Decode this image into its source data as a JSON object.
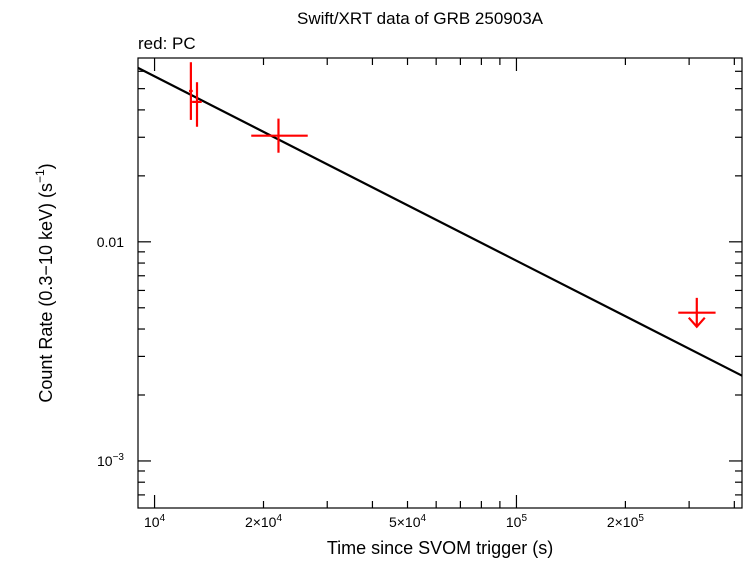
{
  "chart_data": {
    "type": "scatter",
    "title": "Swift/XRT data of GRB 250903A",
    "subtitle": "red: PC",
    "xlabel": "Time since SVOM trigger (s)",
    "ylabel": "Count Rate (0.3−10 keV) (s",
    "ylabel_sup": "−1",
    "ylabel_close": ")",
    "x_scale": "log",
    "y_scale": "log",
    "xlim": [
      9000,
      420000
    ],
    "ylim": [
      0.00061,
      0.069
    ],
    "x_ticks": [
      {
        "value": 10000,
        "label": "10",
        "sup": "4"
      },
      {
        "value": 20000,
        "label": "2×10",
        "sup": "4"
      },
      {
        "value": 50000,
        "label": "5×10",
        "sup": "4"
      },
      {
        "value": 100000,
        "label": "10",
        "sup": "5"
      },
      {
        "value": 200000,
        "label": "2×10",
        "sup": "5"
      }
    ],
    "y_ticks": [
      {
        "value": 0.01,
        "label": "0.01",
        "sup": ""
      },
      {
        "value": 0.001,
        "label": "10",
        "sup": "−3"
      }
    ],
    "grid": false,
    "series": [
      {
        "name": "PC",
        "color": "#ff0000",
        "points": [
          {
            "x": 12600,
            "y": 0.0488,
            "x_lo": 12450,
            "x_hi": 12750,
            "y_lo": 0.036,
            "y_hi": 0.066
          },
          {
            "x": 13100,
            "y": 0.0435,
            "x_lo": 12700,
            "x_hi": 13500,
            "y_lo": 0.0335,
            "y_hi": 0.0535
          },
          {
            "x": 22000,
            "y": 0.0305,
            "x_lo": 18500,
            "x_hi": 26500,
            "y_lo": 0.0255,
            "y_hi": 0.0365
          }
        ],
        "upper_limits": [
          {
            "x": 315000,
            "y": 0.00475,
            "x_lo": 280000,
            "x_hi": 355000,
            "y_hi": 0.00555
          }
        ]
      }
    ],
    "model": {
      "name": "power-law fit",
      "color": "#000000",
      "x": [
        9000,
        420000
      ],
      "y": [
        0.0622,
        0.00245
      ]
    }
  }
}
